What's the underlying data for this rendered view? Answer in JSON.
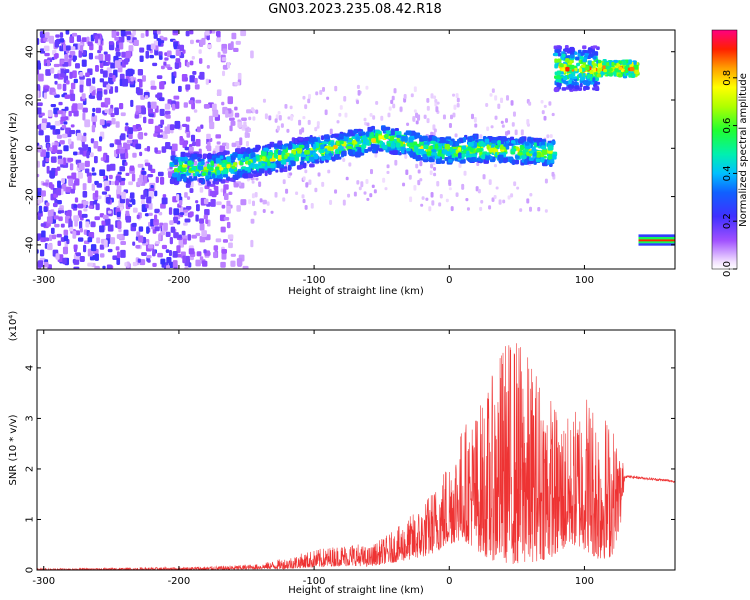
{
  "title": "GN03.2023.235.08.42.R18",
  "chart_data": [
    {
      "type": "heatmap",
      "title": "GN03.2023.235.08.42.R18",
      "xlabel": "Height of straight line (km)",
      "ylabel": "Frequency (Hz)",
      "xlim": [
        -305,
        167
      ],
      "ylim": [
        -50,
        49
      ],
      "x_ticks": [
        -300,
        -200,
        -100,
        0,
        100
      ],
      "x_tick_labels": [
        "-300",
        "-200",
        "-100",
        "0",
        "100"
      ],
      "y_ticks": [
        -40,
        -20,
        0,
        20,
        40
      ],
      "y_tick_labels": [
        "-40",
        "-20",
        "0",
        "20",
        "40"
      ],
      "colorbar": {
        "label": "Normalized spectral amplitude",
        "range": [
          0,
          1
        ],
        "ticks": [
          0.0,
          0.2,
          0.4,
          0.6,
          0.8
        ],
        "tick_labels": [
          "0.0",
          "0.2",
          "0.4",
          "0.6",
          "0.8"
        ]
      },
      "ridge": {
        "x": [
          -200,
          -180,
          -160,
          -140,
          -120,
          -100,
          -80,
          -60,
          -50,
          -40,
          -30,
          -20,
          0,
          20,
          40,
          60,
          78
        ],
        "frequency": [
          -8,
          -9,
          -7,
          -5,
          -3,
          -1,
          1,
          3,
          4,
          3,
          2,
          0,
          -1,
          0,
          -1,
          -1,
          -2
        ]
      },
      "segments": [
        {
          "x": [
            78,
            140
          ],
          "frequency": 33
        },
        {
          "x": [
            140,
            167
          ],
          "frequency": -38
        }
      ]
    },
    {
      "type": "line",
      "xlabel": "Height of straight line (km)",
      "ylabel": "SNR (10 * v/v)",
      "y_scale_label": "(x10⁴)",
      "xlim": [
        -305,
        167
      ],
      "ylim": [
        0,
        4.75
      ],
      "x_ticks": [
        -300,
        -200,
        -100,
        0,
        100
      ],
      "x_tick_labels": [
        "-300",
        "-200",
        "-100",
        "0",
        "100"
      ],
      "y_ticks": [
        0,
        1,
        2,
        3,
        4
      ],
      "y_tick_labels": [
        "0",
        "1",
        "2",
        "3",
        "4"
      ],
      "color": "#ee3333",
      "envelope": {
        "x": [
          -305,
          -250,
          -200,
          -170,
          -140,
          -120,
          -100,
          -80,
          -70,
          -60,
          -40,
          -20,
          -10,
          0,
          10,
          20,
          30,
          40,
          50,
          60,
          70,
          80,
          90,
          100,
          110,
          120,
          127,
          130,
          167
        ],
        "low": [
          0,
          0,
          0,
          0,
          0.02,
          0.02,
          0.05,
          0.08,
          0.08,
          0.07,
          0.15,
          0.25,
          0.35,
          0.5,
          0.6,
          0.4,
          0.2,
          0.15,
          0.1,
          0.15,
          0.2,
          0.3,
          0.5,
          0.4,
          0.2,
          0.25,
          0.9,
          1.83,
          1.73
        ],
        "high": [
          0.03,
          0.04,
          0.06,
          0.08,
          0.12,
          0.25,
          0.4,
          0.5,
          0.55,
          0.45,
          0.8,
          1.3,
          1.7,
          2.3,
          2.9,
          3.2,
          3.7,
          4.6,
          4.7,
          4.2,
          3.8,
          3.2,
          3.0,
          3.7,
          3.3,
          3.0,
          2.4,
          1.88,
          1.78
        ]
      }
    }
  ]
}
